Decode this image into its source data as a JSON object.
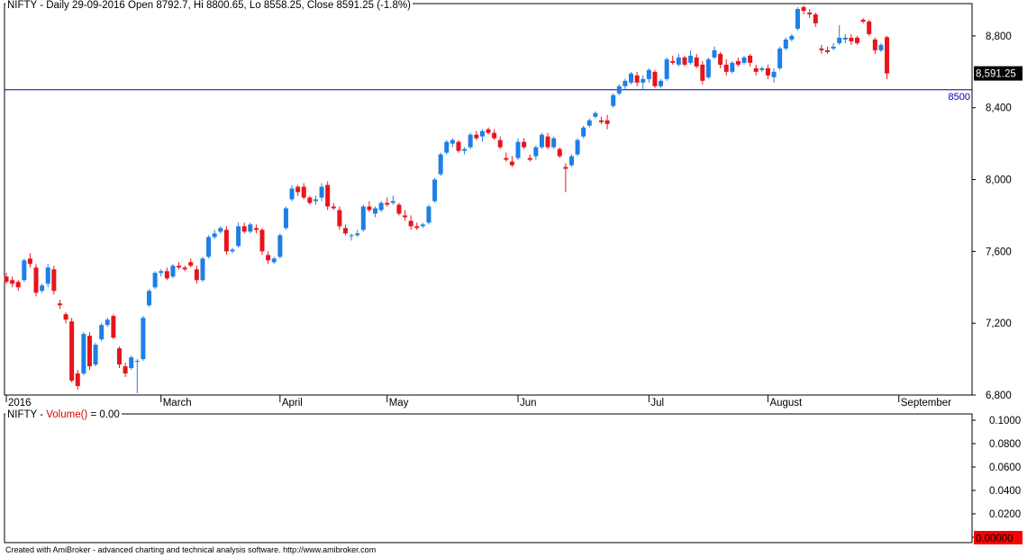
{
  "header": {
    "title": "NIFTY - Daily 29-09-2016 Open 8792.7, Hi 8800.65, Lo 8558.25, Close 8591.25 (-1.8%)"
  },
  "volume_panel": {
    "symbol": "NIFTY - ",
    "function": "Volume()",
    "value_text": " = 0.00",
    "axis_labels": [
      "0.1000",
      "0.0800",
      "0.0600",
      "0.0400",
      "0.0200",
      "0"
    ],
    "current_badge": "0.00000"
  },
  "footer": {
    "text": "Created with AmiBroker - advanced charting and technical analysis software. http://www.amibroker.com"
  },
  "colors": {
    "up": "#1e7fe6",
    "down": "#e8141c",
    "line": "#0000aa",
    "badge_bg": "#000000",
    "vol_badge_bg": "#ff0000"
  },
  "chart_data": {
    "type": "candlestick",
    "ylim": [
      6800,
      8980
    ],
    "y_ticks": [
      6800,
      7200,
      7600,
      8000,
      8400,
      8800
    ],
    "y_tick_labels": [
      "6,800",
      "7,200",
      "7,600",
      "8,000",
      "8,400",
      "8,800"
    ],
    "x_labels": [
      {
        "text": "2016",
        "day": 0
      },
      {
        "text": "March",
        "day": 26
      },
      {
        "text": "April",
        "day": 46
      },
      {
        "text": "May",
        "day": 64
      },
      {
        "text": "Jun",
        "day": 86
      },
      {
        "text": "Jul",
        "day": 108
      },
      {
        "text": "August",
        "day": 128
      },
      {
        "text": "September",
        "day": 150
      }
    ],
    "horizontal_line": {
      "value": 8500,
      "label": "8500"
    },
    "last_close_label": "8,591.25",
    "last_close": 8591.25,
    "candles": [
      [
        7460,
        7480,
        7420,
        7430
      ],
      [
        7440,
        7460,
        7400,
        7420
      ],
      [
        7430,
        7440,
        7380,
        7400
      ],
      [
        7440,
        7560,
        7430,
        7550
      ],
      [
        7560,
        7590,
        7510,
        7530
      ],
      [
        7510,
        7530,
        7350,
        7370
      ],
      [
        7380,
        7420,
        7370,
        7410
      ],
      [
        7420,
        7530,
        7400,
        7510
      ],
      [
        7500,
        7520,
        7360,
        7380
      ],
      [
        7310,
        7330,
        7280,
        7300
      ],
      [
        7250,
        7260,
        7200,
        7220
      ],
      [
        7210,
        7230,
        6870,
        6880
      ],
      [
        6920,
        6940,
        6830,
        6850
      ],
      [
        6920,
        7150,
        6910,
        7140
      ],
      [
        7130,
        7150,
        6940,
        6960
      ],
      [
        6970,
        7090,
        6960,
        7080
      ],
      [
        7110,
        7200,
        7100,
        7190
      ],
      [
        7190,
        7230,
        7180,
        7220
      ],
      [
        7240,
        7250,
        7110,
        7120
      ],
      [
        7060,
        7070,
        6950,
        6970
      ],
      [
        6960,
        6980,
        6900,
        6920
      ],
      [
        6950,
        7020,
        6940,
        7010
      ],
      [
        6990,
        7000,
        6810,
        6990
      ],
      [
        7000,
        7240,
        6990,
        7230
      ],
      [
        7300,
        7390,
        7290,
        7380
      ],
      [
        7400,
        7490,
        7390,
        7480
      ],
      [
        7480,
        7500,
        7460,
        7490
      ],
      [
        7490,
        7510,
        7440,
        7450
      ],
      [
        7460,
        7530,
        7450,
        7520
      ],
      [
        7520,
        7540,
        7500,
        7510
      ],
      [
        7510,
        7520,
        7490,
        7500
      ],
      [
        7540,
        7560,
        7510,
        7520
      ],
      [
        7500,
        7520,
        7420,
        7440
      ],
      [
        7440,
        7570,
        7430,
        7560
      ],
      [
        7570,
        7690,
        7560,
        7680
      ],
      [
        7680,
        7720,
        7670,
        7700
      ],
      [
        7710,
        7740,
        7700,
        7730
      ],
      [
        7720,
        7740,
        7580,
        7600
      ],
      [
        7600,
        7620,
        7590,
        7610
      ],
      [
        7630,
        7760,
        7620,
        7740
      ],
      [
        7740,
        7760,
        7700,
        7710
      ],
      [
        7710,
        7760,
        7700,
        7750
      ],
      [
        7730,
        7750,
        7700,
        7720
      ],
      [
        7720,
        7730,
        7580,
        7600
      ],
      [
        7580,
        7600,
        7530,
        7550
      ],
      [
        7540,
        7570,
        7530,
        7560
      ],
      [
        7570,
        7700,
        7560,
        7690
      ],
      [
        7730,
        7850,
        7720,
        7840
      ],
      [
        7890,
        7970,
        7880,
        7950
      ],
      [
        7960,
        7970,
        7910,
        7930
      ],
      [
        7960,
        7980,
        7890,
        7900
      ],
      [
        7900,
        7910,
        7860,
        7870
      ],
      [
        7880,
        7910,
        7860,
        7890
      ],
      [
        7900,
        7980,
        7880,
        7960
      ],
      [
        7970,
        7990,
        7830,
        7850
      ],
      [
        7850,
        7870,
        7830,
        7840
      ],
      [
        7830,
        7850,
        7720,
        7740
      ],
      [
        7730,
        7750,
        7690,
        7700
      ],
      [
        7690,
        7700,
        7660,
        7690
      ],
      [
        7690,
        7720,
        7680,
        7700
      ],
      [
        7720,
        7860,
        7710,
        7850
      ],
      [
        7850,
        7880,
        7820,
        7830
      ],
      [
        7810,
        7850,
        7790,
        7840
      ],
      [
        7830,
        7880,
        7820,
        7870
      ],
      [
        7870,
        7900,
        7850,
        7860
      ],
      [
        7870,
        7910,
        7860,
        7880
      ],
      [
        7860,
        7870,
        7800,
        7810
      ],
      [
        7800,
        7830,
        7770,
        7790
      ],
      [
        7770,
        7800,
        7720,
        7740
      ],
      [
        7740,
        7760,
        7720,
        7730
      ],
      [
        7740,
        7760,
        7730,
        7750
      ],
      [
        7760,
        7860,
        7750,
        7850
      ],
      [
        7880,
        8010,
        7870,
        8000
      ],
      [
        8030,
        8150,
        8020,
        8140
      ],
      [
        8150,
        8220,
        8140,
        8210
      ],
      [
        8200,
        8230,
        8180,
        8220
      ],
      [
        8210,
        8220,
        8150,
        8160
      ],
      [
        8160,
        8180,
        8140,
        8170
      ],
      [
        8180,
        8260,
        8170,
        8250
      ],
      [
        8250,
        8270,
        8220,
        8230
      ],
      [
        8240,
        8280,
        8210,
        8270
      ],
      [
        8280,
        8290,
        8250,
        8260
      ],
      [
        8260,
        8280,
        8220,
        8230
      ],
      [
        8220,
        8240,
        8170,
        8180
      ],
      [
        8120,
        8150,
        8100,
        8110
      ],
      [
        8100,
        8130,
        8070,
        8080
      ],
      [
        8120,
        8230,
        8110,
        8210
      ],
      [
        8210,
        8230,
        8170,
        8180
      ],
      [
        8120,
        8140,
        8100,
        8110
      ],
      [
        8130,
        8190,
        8110,
        8180
      ],
      [
        8180,
        8260,
        8170,
        8250
      ],
      [
        8240,
        8260,
        8170,
        8180
      ],
      [
        8180,
        8240,
        8170,
        8230
      ],
      [
        8170,
        8180,
        8120,
        8130
      ],
      [
        8070,
        8090,
        7930,
        8060
      ],
      [
        8080,
        8140,
        8070,
        8130
      ],
      [
        8140,
        8230,
        8130,
        8220
      ],
      [
        8240,
        8300,
        8230,
        8290
      ],
      [
        8300,
        8340,
        8290,
        8330
      ],
      [
        8350,
        8380,
        8340,
        8370
      ],
      [
        8330,
        8350,
        8310,
        8320
      ],
      [
        8330,
        8360,
        8280,
        8310
      ],
      [
        8410,
        8480,
        8400,
        8470
      ],
      [
        8480,
        8530,
        8470,
        8520
      ],
      [
        8520,
        8560,
        8500,
        8550
      ],
      [
        8540,
        8600,
        8530,
        8590
      ],
      [
        8580,
        8600,
        8520,
        8540
      ],
      [
        8540,
        8580,
        8500,
        8560
      ],
      [
        8560,
        8620,
        8540,
        8610
      ],
      [
        8600,
        8610,
        8510,
        8520
      ],
      [
        8520,
        8560,
        8510,
        8550
      ],
      [
        8560,
        8680,
        8550,
        8670
      ],
      [
        8660,
        8690,
        8640,
        8650
      ],
      [
        8640,
        8700,
        8630,
        8680
      ],
      [
        8680,
        8690,
        8630,
        8640
      ],
      [
        8650,
        8720,
        8640,
        8690
      ],
      [
        8680,
        8700,
        8620,
        8630
      ],
      [
        8640,
        8660,
        8530,
        8550
      ],
      [
        8570,
        8680,
        8560,
        8670
      ],
      [
        8680,
        8740,
        8670,
        8720
      ],
      [
        8700,
        8710,
        8620,
        8640
      ],
      [
        8640,
        8670,
        8580,
        8600
      ],
      [
        8600,
        8660,
        8590,
        8650
      ],
      [
        8660,
        8680,
        8630,
        8640
      ],
      [
        8650,
        8690,
        8640,
        8680
      ],
      [
        8690,
        8700,
        8630,
        8650
      ],
      [
        8620,
        8640,
        8580,
        8600
      ],
      [
        8610,
        8630,
        8600,
        8620
      ],
      [
        8620,
        8640,
        8560,
        8580
      ],
      [
        8570,
        8620,
        8540,
        8600
      ],
      [
        8620,
        8740,
        8610,
        8730
      ],
      [
        8730,
        8790,
        8720,
        8780
      ],
      [
        8780,
        8810,
        8770,
        8800
      ],
      [
        8840,
        8960,
        8830,
        8950
      ],
      [
        8960,
        8970,
        8920,
        8940
      ],
      [
        8930,
        8950,
        8900,
        8920
      ],
      [
        8920,
        8930,
        8850,
        8870
      ],
      [
        8730,
        8750,
        8700,
        8720
      ],
      [
        8720,
        8740,
        8700,
        8710
      ],
      [
        8730,
        8760,
        8720,
        8740
      ],
      [
        8760,
        8860,
        8750,
        8790
      ],
      [
        8780,
        8810,
        8760,
        8790
      ],
      [
        8790,
        8810,
        8750,
        8770
      ],
      [
        8790,
        8800,
        8750,
        8760
      ],
      [
        8890,
        8900,
        8870,
        8880
      ],
      [
        8880,
        8890,
        8800,
        8810
      ],
      [
        8780,
        8790,
        8700,
        8720
      ],
      [
        8720,
        8760,
        8710,
        8750
      ],
      [
        8792.7,
        8800.65,
        8558.25,
        8591.25
      ]
    ]
  }
}
